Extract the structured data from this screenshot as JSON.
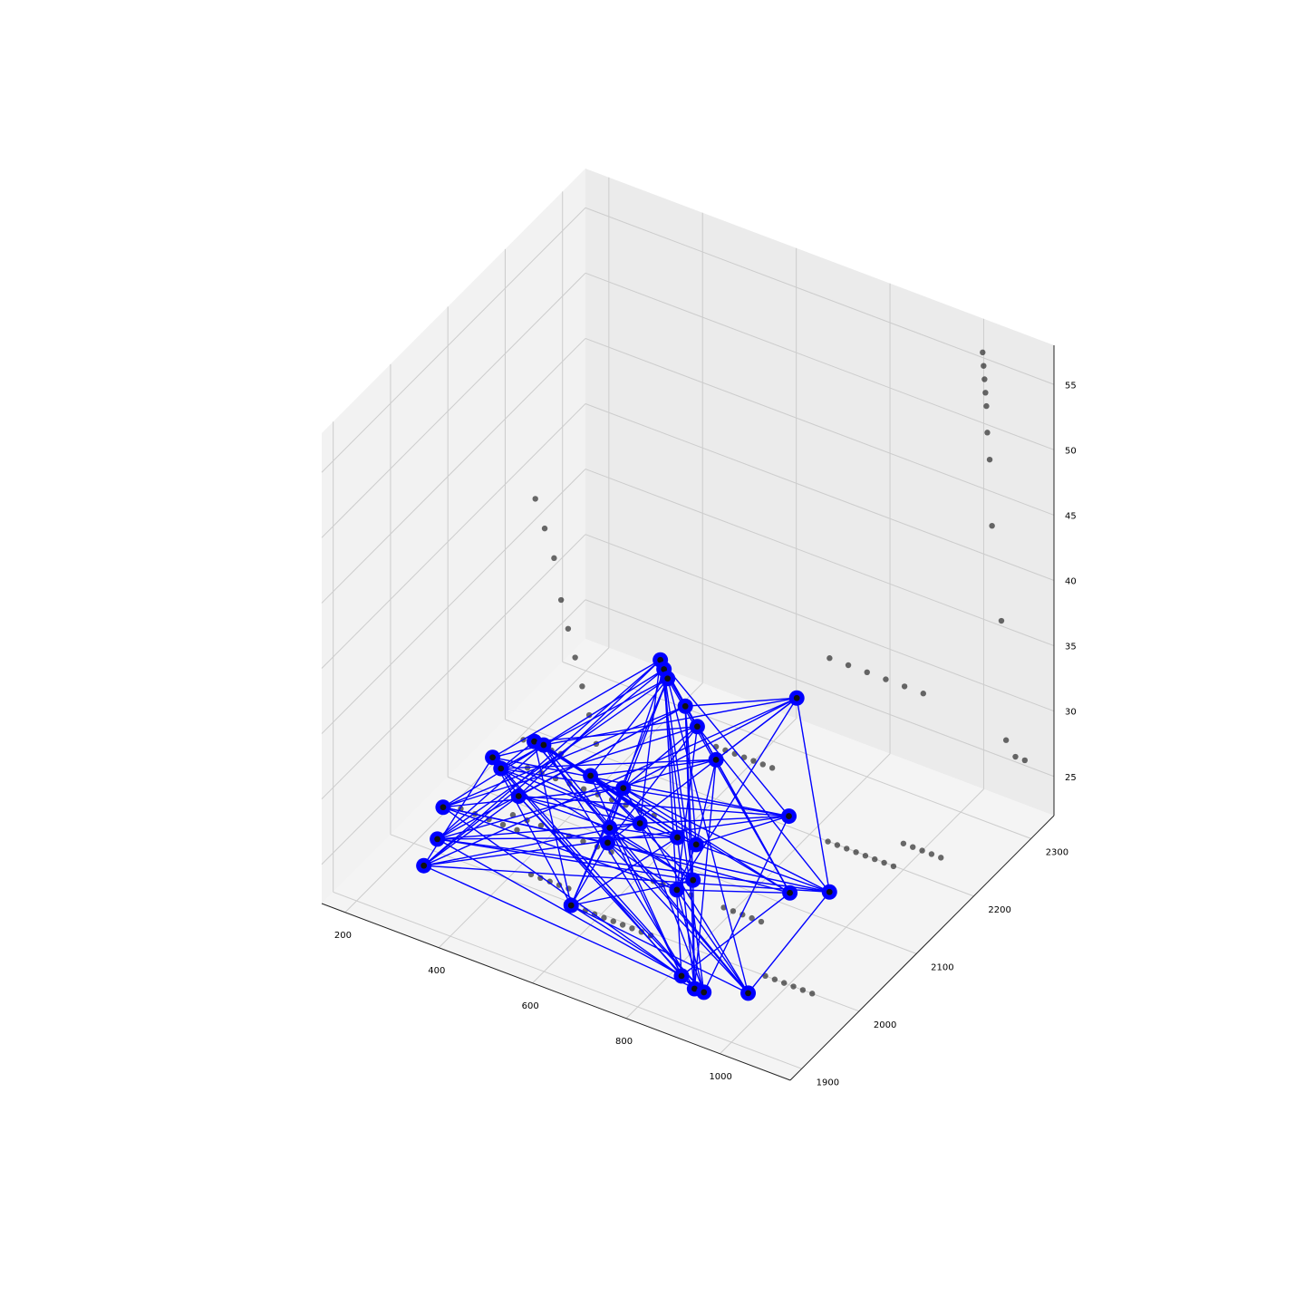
{
  "chart_data": {
    "type": "scatter3d",
    "title": "",
    "xlabel": "",
    "ylabel": "",
    "zlabel": "",
    "grid": true,
    "legend": "none",
    "xlim": [
      150,
      1150
    ],
    "ylim": [
      1880,
      2340
    ],
    "zlim": [
      22,
      58
    ],
    "xticks": [
      "200",
      "400",
      "600",
      "800",
      "1000"
    ],
    "yticks": [
      "1900",
      "2000",
      "2100",
      "2200",
      "2300"
    ],
    "zticks": [
      "25",
      "30",
      "35",
      "40",
      "45",
      "50",
      "55"
    ],
    "xtick_values": [
      200,
      400,
      600,
      800,
      1000
    ],
    "ytick_values": [
      1900,
      2000,
      2100,
      2200,
      2300
    ],
    "ztick_values": [
      25,
      30,
      35,
      40,
      45,
      50,
      55
    ],
    "colors": {
      "pane_left": "#f2f2f2",
      "pane_back": "#ebebeb",
      "pane_floor": "#f4f4f4",
      "grid": "#cccccc",
      "points": "#111111",
      "network": "#0000ff"
    },
    "series": [
      {
        "label_id": "background-points",
        "points": [
          [
            300,
            2130,
            44
          ],
          [
            320,
            2130,
            42
          ],
          [
            340,
            2130,
            40
          ],
          [
            355,
            2130,
            37
          ],
          [
            370,
            2130,
            35
          ],
          [
            385,
            2130,
            33
          ],
          [
            400,
            2130,
            31
          ],
          [
            415,
            2130,
            29
          ],
          [
            430,
            2130,
            27
          ],
          [
            1010,
            2330,
            56
          ],
          [
            1012,
            2330,
            55
          ],
          [
            1014,
            2330,
            54
          ],
          [
            1016,
            2330,
            53
          ],
          [
            1018,
            2330,
            52
          ],
          [
            1020,
            2330,
            50
          ],
          [
            1025,
            2330,
            48
          ],
          [
            1030,
            2330,
            43
          ],
          [
            1050,
            2330,
            36
          ],
          [
            720,
            2300,
            30
          ],
          [
            760,
            2300,
            30
          ],
          [
            800,
            2300,
            30
          ],
          [
            840,
            2300,
            30
          ],
          [
            880,
            2300,
            30
          ],
          [
            920,
            2300,
            30
          ],
          [
            1060,
            2330,
            27
          ],
          [
            1080,
            2330,
            26
          ],
          [
            1100,
            2330,
            26
          ],
          [
            300,
            2000,
            26
          ],
          [
            330,
            2000,
            26
          ],
          [
            360,
            2000,
            26
          ],
          [
            390,
            2000,
            26
          ],
          [
            420,
            2000,
            26
          ],
          [
            320,
            2100,
            25
          ],
          [
            350,
            2100,
            25
          ],
          [
            380,
            2100,
            25
          ],
          [
            410,
            2100,
            25
          ],
          [
            440,
            2100,
            25
          ],
          [
            470,
            2100,
            25
          ],
          [
            500,
            2100,
            25
          ],
          [
            530,
            2100,
            25
          ],
          [
            560,
            2100,
            25
          ],
          [
            590,
            2100,
            25
          ],
          [
            350,
            2050,
            24
          ],
          [
            380,
            2050,
            24
          ],
          [
            410,
            2050,
            24
          ],
          [
            440,
            2050,
            24
          ],
          [
            470,
            2050,
            24
          ],
          [
            500,
            2050,
            24
          ],
          [
            530,
            2050,
            24
          ],
          [
            560,
            2050,
            24
          ],
          [
            550,
            1980,
            23
          ],
          [
            570,
            1980,
            23
          ],
          [
            590,
            1980,
            23
          ],
          [
            610,
            1980,
            23
          ],
          [
            630,
            1980,
            23
          ],
          [
            650,
            1980,
            23
          ],
          [
            670,
            1980,
            23
          ],
          [
            690,
            1980,
            23
          ],
          [
            710,
            1980,
            23
          ],
          [
            730,
            1980,
            23
          ],
          [
            900,
            2150,
            25
          ],
          [
            920,
            2150,
            25
          ],
          [
            940,
            2150,
            25
          ],
          [
            960,
            2150,
            25
          ],
          [
            980,
            2150,
            25
          ],
          [
            1000,
            2150,
            25
          ],
          [
            1020,
            2150,
            25
          ],
          [
            1040,
            2150,
            25
          ],
          [
            1000,
            2200,
            24
          ],
          [
            1020,
            2200,
            24
          ],
          [
            1040,
            2200,
            24
          ],
          [
            1060,
            2200,
            24
          ],
          [
            1080,
            2200,
            24
          ],
          [
            250,
            2150,
            24
          ],
          [
            270,
            2150,
            24
          ],
          [
            290,
            2150,
            24
          ],
          [
            310,
            2150,
            24
          ],
          [
            330,
            2150,
            24
          ],
          [
            600,
            2200,
            26
          ],
          [
            620,
            2200,
            26
          ],
          [
            640,
            2200,
            26
          ],
          [
            660,
            2200,
            26
          ],
          [
            680,
            2200,
            26
          ],
          [
            700,
            2200,
            26
          ],
          [
            720,
            2200,
            26
          ],
          [
            450,
            2000,
            23
          ],
          [
            470,
            2000,
            23
          ],
          [
            490,
            2000,
            23
          ],
          [
            510,
            2000,
            23
          ],
          [
            530,
            2000,
            23
          ],
          [
            650,
            2050,
            23
          ],
          [
            670,
            2050,
            23
          ],
          [
            690,
            2050,
            23
          ],
          [
            710,
            2050,
            23
          ],
          [
            730,
            2050,
            23
          ],
          [
            800,
            2050,
            23
          ],
          [
            820,
            2050,
            23
          ],
          [
            840,
            2050,
            23
          ],
          [
            860,
            2050,
            23
          ],
          [
            880,
            2050,
            23
          ],
          [
            950,
            2000,
            22
          ],
          [
            970,
            2000,
            22
          ],
          [
            990,
            2000,
            22
          ],
          [
            1010,
            2000,
            22
          ],
          [
            1030,
            2000,
            22
          ],
          [
            1050,
            2000,
            22
          ]
        ]
      },
      {
        "label_id": "network-nodes",
        "points": [
          [
            420,
            2250,
            28
          ],
          [
            440,
            2240,
            28
          ],
          [
            460,
            2230,
            28
          ],
          [
            510,
            2220,
            27
          ],
          [
            560,
            2200,
            27
          ],
          [
            270,
            2080,
            26
          ],
          [
            300,
            2070,
            26
          ],
          [
            310,
            2120,
            26
          ],
          [
            330,
            2120,
            26
          ],
          [
            250,
            2010,
            25
          ],
          [
            350,
            2060,
            25
          ],
          [
            430,
            2120,
            25
          ],
          [
            500,
            2120,
            25
          ],
          [
            600,
            2200,
            25
          ],
          [
            650,
            2300,
            26
          ],
          [
            560,
            2100,
            24
          ],
          [
            520,
            2080,
            24
          ],
          [
            540,
            2060,
            24
          ],
          [
            640,
            2100,
            24
          ],
          [
            680,
            2100,
            24
          ],
          [
            780,
            2180,
            24
          ],
          [
            560,
            1980,
            23
          ],
          [
            700,
            2050,
            23
          ],
          [
            710,
            2070,
            23
          ],
          [
            250,
            2000,
            23
          ],
          [
            270,
            1960,
            23
          ],
          [
            880,
            2100,
            23
          ],
          [
            940,
            2120,
            23
          ],
          [
            820,
            1960,
            22
          ],
          [
            860,
            1950,
            22
          ],
          [
            880,
            1950,
            22
          ],
          [
            950,
            1970,
            22
          ]
        ]
      }
    ]
  }
}
